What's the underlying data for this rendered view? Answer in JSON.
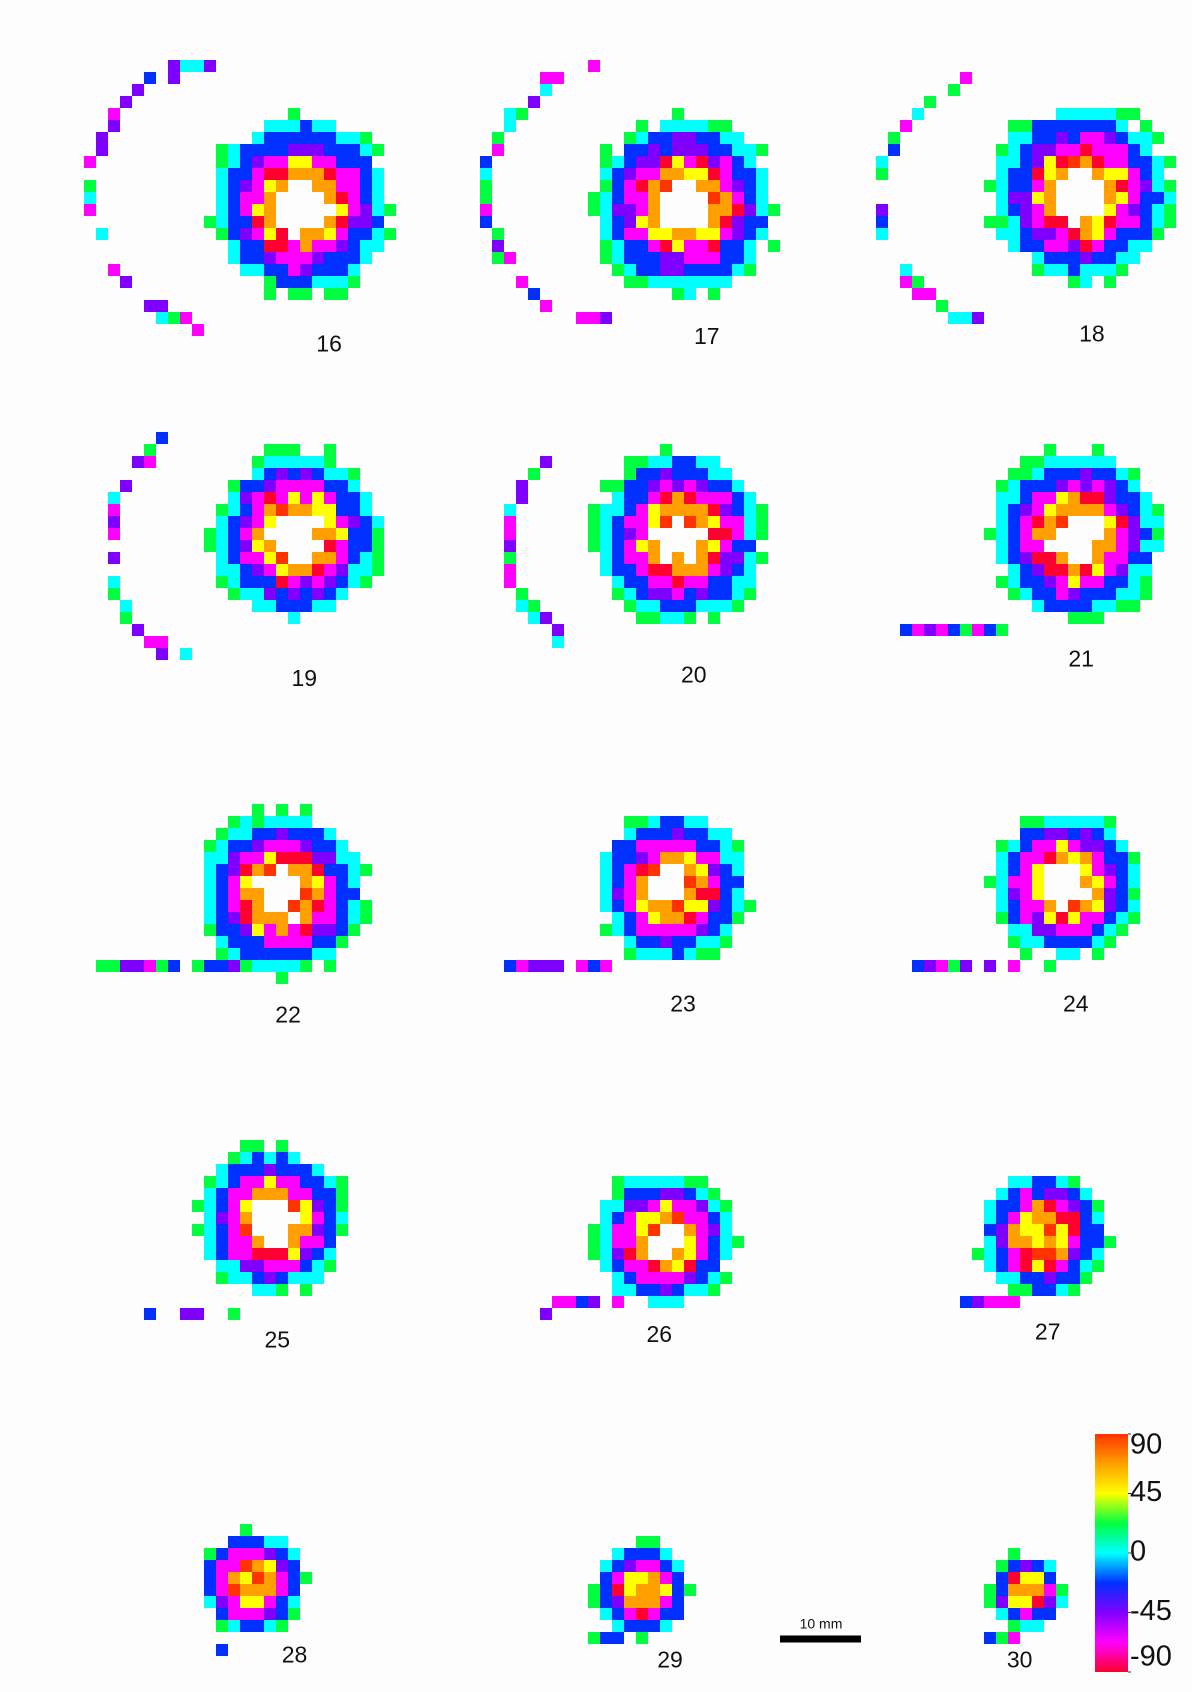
{
  "slices": [
    16,
    17,
    18,
    19,
    20,
    21,
    22,
    23,
    24,
    25,
    26,
    27,
    28,
    29,
    30
  ],
  "colorbar": {
    "ylim": [
      -90,
      90
    ],
    "ticks": [
      90,
      45,
      0,
      -45,
      -90
    ],
    "colors": [
      "#ff3300",
      "#ffa000",
      "#ffff00",
      "#00ff40",
      "#00ffff",
      "#0030ff",
      "#8000ff",
      "#ff00ff",
      "#ff0030"
    ]
  },
  "scale_bar": {
    "label": "10 mm"
  }
}
